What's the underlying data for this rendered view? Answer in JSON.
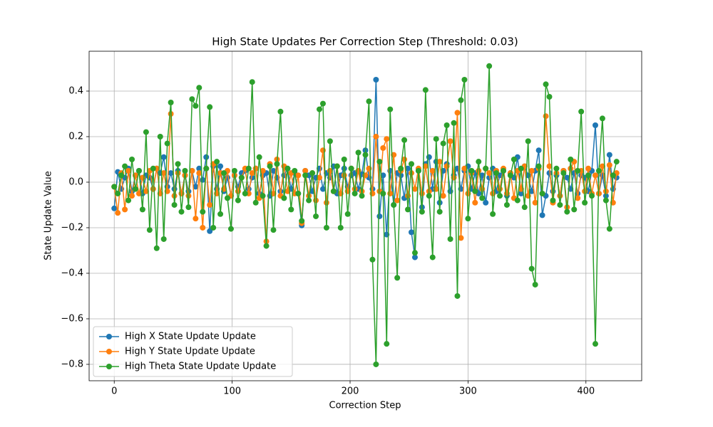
{
  "chart_data": {
    "type": "line",
    "title": "High State Updates Per Correction Step (Threshold: 0.03)",
    "x_label": "Correction Step",
    "y_label": "State Update Value",
    "xlim": [
      -21.3,
      447.3
    ],
    "ylim": [
      -0.872,
      0.575
    ],
    "xticks": [
      0,
      100,
      200,
      300,
      400
    ],
    "yticks": [
      {
        "value": -0.8,
        "label": "−0.8"
      },
      {
        "value": -0.6,
        "label": "−0.6"
      },
      {
        "value": -0.4,
        "label": "−0.4"
      },
      {
        "value": -0.2,
        "label": "−0.2"
      },
      {
        "value": 0,
        "label": "0.0"
      },
      0.2,
      0.4
    ],
    "grid": true,
    "legend": "lower left",
    "x": [
      0,
      3,
      6,
      9,
      12,
      15,
      18,
      21,
      24,
      27,
      30,
      33,
      36,
      39,
      42,
      45,
      48,
      51,
      54,
      57,
      60,
      63,
      66,
      69,
      72,
      75,
      78,
      81,
      84,
      87,
      90,
      93,
      96,
      99,
      102,
      105,
      108,
      111,
      114,
      117,
      120,
      123,
      126,
      129,
      132,
      135,
      138,
      141,
      144,
      147,
      150,
      153,
      156,
      159,
      162,
      165,
      168,
      171,
      174,
      177,
      180,
      183,
      186,
      189,
      192,
      195,
      198,
      201,
      204,
      207,
      210,
      213,
      216,
      219,
      222,
      225,
      228,
      231,
      234,
      237,
      240,
      243,
      246,
      249,
      252,
      255,
      258,
      261,
      264,
      267,
      270,
      273,
      276,
      279,
      282,
      285,
      288,
      291,
      294,
      297,
      300,
      303,
      306,
      309,
      312,
      315,
      318,
      321,
      324,
      327,
      330,
      333,
      336,
      339,
      342,
      345,
      348,
      351,
      354,
      357,
      360,
      363,
      366,
      369,
      372,
      375,
      378,
      381,
      384,
      387,
      390,
      393,
      396,
      399,
      402,
      405,
      408,
      411,
      414,
      417,
      420,
      423,
      426
    ],
    "series": [
      {
        "name": "High X State Update Update",
        "color": "#1f77b4",
        "values": [
          -0.115,
          0.045,
          -0.03,
          0.02,
          0.06,
          -0.04,
          0.03,
          0.05,
          -0.05,
          0.03,
          0.02,
          -0.03,
          0.06,
          0.04,
          0.11,
          -0.02,
          0.04,
          -0.03,
          0.05,
          -0.05,
          0.03,
          -0.04,
          0.05,
          -0.02,
          0.06,
          0.01,
          0.11,
          -0.215,
          0.07,
          -0.03,
          0.07,
          -0.04,
          0.02,
          -0.06,
          0.03,
          -0.02,
          0.04,
          0.05,
          -0.03,
          0.02,
          0.06,
          -0.05,
          0.03,
          0.04,
          -0.06,
          0.05,
          0.02,
          -0.04,
          0.03,
          0.06,
          -0.03,
          0.04,
          -0.05,
          -0.19,
          0.05,
          0.03,
          -0.04,
          0.02,
          0.06,
          -0.03,
          0.04,
          0.02,
          0.07,
          -0.05,
          0.03,
          0.06,
          -0.02,
          0.03,
          0.04,
          -0.03,
          0.035,
          0.14,
          0.02,
          -0.03,
          0.45,
          -0.15,
          0.03,
          -0.23,
          0.05,
          -0.1,
          0.04,
          0.03,
          -0.07,
          0.06,
          -0.22,
          -0.33,
          0.05,
          -0.11,
          0.08,
          0.11,
          -0.03,
          0.09,
          -0.09,
          0.05,
          0.08,
          -0.04,
          0.03,
          0.06,
          -0.03,
          0.05,
          0.07,
          -0.03,
          0.04,
          -0.05,
          0.03,
          -0.09,
          0.02,
          0.06,
          -0.04,
          0.03,
          0.05,
          -0.06,
          0.04,
          0.02,
          0.11,
          -0.05,
          0.07,
          0.03,
          -0.04,
          0.05,
          0.14,
          -0.145,
          -0.06,
          0.04,
          -0.04,
          0.03,
          -0.06,
          0.05,
          0.02,
          -0.03,
          0.04,
          -0.05,
          0.03,
          0.02,
          -0.04,
          0.05,
          0.25,
          -0.05,
          0.03,
          -0.06,
          0.12,
          -0.03,
          0.02
        ]
      },
      {
        "name": "High Y State Update Update",
        "color": "#ff7f0e",
        "values": [
          -0.02,
          -0.135,
          0.04,
          -0.12,
          0.05,
          -0.06,
          0.03,
          -0.05,
          0.02,
          -0.04,
          0.05,
          -0.03,
          0.06,
          -0.05,
          0.04,
          -0.04,
          0.3,
          -0.06,
          0.04,
          -0.05,
          0.03,
          -0.06,
          0.05,
          -0.16,
          0.04,
          -0.2,
          0.06,
          -0.1,
          0.08,
          -0.05,
          0.04,
          -0.03,
          0.05,
          -0.06,
          0.03,
          -0.04,
          0.02,
          0.06,
          -0.05,
          0.04,
          0.06,
          -0.07,
          0.05,
          -0.26,
          0.08,
          -0.05,
          0.1,
          -0.06,
          0.07,
          -0.04,
          0.04,
          -0.05,
          0.03,
          -0.18,
          0.05,
          -0.06,
          0.04,
          -0.08,
          0.02,
          0.14,
          -0.09,
          0.05,
          -0.04,
          0.07,
          -0.05,
          0.03,
          -0.04,
          0.06,
          -0.03,
          0.05,
          -0.04,
          0.03,
          0.06,
          -0.05,
          0.2,
          -0.04,
          0.15,
          0.19,
          -0.05,
          0.12,
          -0.08,
          0.05,
          0.1,
          -0.06,
          0.04,
          -0.03,
          0.06,
          -0.05,
          0.07,
          -0.04,
          0.05,
          -0.03,
          0.09,
          -0.06,
          0.07,
          0.18,
          0.02,
          0.305,
          -0.245,
          0.06,
          -0.05,
          0.04,
          -0.09,
          0.05,
          -0.03,
          0.06,
          0.04,
          -0.05,
          0.05,
          -0.03,
          0.06,
          -0.05,
          0.04,
          -0.07,
          0.05,
          -0.03,
          0.07,
          -0.06,
          0.05,
          -0.09,
          0.06,
          -0.05,
          0.29,
          0.07,
          -0.09,
          0.04,
          -0.06,
          0.05,
          -0.11,
          0.06,
          0.09,
          -0.07,
          0.05,
          -0.04,
          0.06,
          -0.05,
          0.03,
          -0.05,
          0.07,
          -0.04,
          0.075,
          -0.09,
          0.04
        ]
      },
      {
        "name": "High Theta State Update Update",
        "color": "#2ca02c",
        "values": [
          -0.02,
          -0.05,
          0.03,
          0.07,
          -0.08,
          0.1,
          -0.03,
          0.05,
          -0.12,
          0.22,
          -0.21,
          0.06,
          -0.29,
          0.2,
          -0.25,
          0.17,
          0.35,
          -0.1,
          0.08,
          -0.13,
          0.05,
          -0.11,
          0.365,
          0.335,
          0.415,
          -0.13,
          0.06,
          0.33,
          -0.2,
          0.09,
          -0.14,
          0.04,
          -0.07,
          -0.205,
          0.05,
          -0.08,
          0.02,
          -0.05,
          0.06,
          0.44,
          -0.09,
          0.11,
          -0.06,
          -0.28,
          0.07,
          -0.21,
          0.08,
          0.31,
          -0.07,
          0.06,
          -0.12,
          0.05,
          -0.05,
          -0.17,
          0.03,
          -0.08,
          0.04,
          -0.15,
          0.32,
          0.345,
          -0.2,
          0.18,
          -0.04,
          0.07,
          -0.2,
          0.1,
          -0.14,
          0.06,
          -0.05,
          0.13,
          -0.06,
          0.12,
          0.355,
          -0.34,
          -0.8,
          0.09,
          -0.05,
          -0.71,
          0.32,
          -0.1,
          -0.42,
          0.06,
          0.185,
          -0.12,
          0.08,
          -0.31,
          0.05,
          -0.13,
          0.405,
          -0.06,
          -0.33,
          0.19,
          -0.13,
          0.17,
          0.25,
          -0.25,
          0.26,
          -0.5,
          0.36,
          0.45,
          -0.16,
          0.05,
          -0.04,
          0.09,
          -0.07,
          0.06,
          0.51,
          -0.14,
          0.04,
          -0.06,
          0.05,
          -0.1,
          0.03,
          0.1,
          -0.08,
          0.06,
          -0.11,
          0.18,
          -0.38,
          -0.45,
          0.07,
          -0.05,
          0.43,
          0.375,
          -0.08,
          0.06,
          -0.1,
          0.04,
          -0.13,
          0.1,
          -0.12,
          0.05,
          0.31,
          -0.09,
          0.03,
          -0.06,
          -0.71,
          0.05,
          0.28,
          -0.08,
          -0.205,
          0.03,
          0.09
        ]
      }
    ]
  }
}
